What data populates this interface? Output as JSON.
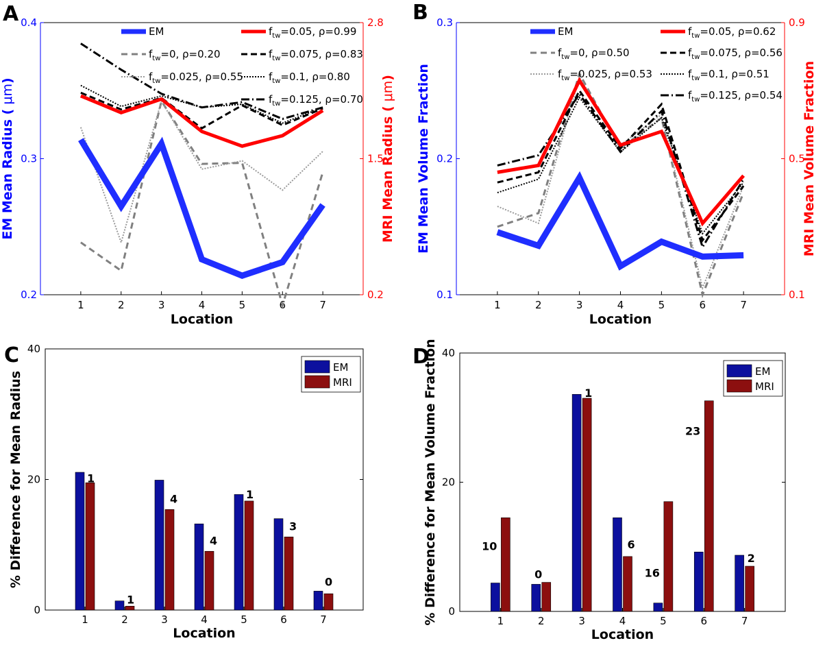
{
  "chart_data": [
    {
      "panel": "A",
      "type": "line",
      "xlabel": "Location",
      "ylabel_left": "EM Mean Radius (",
      "ylabel_left_unit": "μm",
      "ylabel_left_close": ")",
      "ylabel_right": "MRI Mean Radius (",
      "ylabel_right_unit": "μm",
      "ylabel_right_close": ")",
      "x": [
        1,
        2,
        3,
        4,
        5,
        6,
        7
      ],
      "xlim": [
        0,
        8
      ],
      "ylim_left": [
        0.2,
        0.4
      ],
      "yticks_left": [
        "0.2",
        "0.3",
        "0.4"
      ],
      "ylim_right": [
        0.2,
        2.8
      ],
      "yticks_right": [
        "0.2",
        "1.5",
        "2.8"
      ],
      "left_color": "#0000ff",
      "right_color": "#ff0000",
      "series": [
        {
          "name": "EM",
          "axis": "left",
          "color": "#1f2eff",
          "width": 9,
          "dash": "",
          "values": [
            0.314,
            0.265,
            0.311,
            0.226,
            0.214,
            0.224,
            0.266
          ]
        },
        {
          "name_pre": "f",
          "name_sub": "tw",
          "name_post": "=0, ρ=0.20",
          "axis": "right",
          "color": "#808080",
          "width": 3,
          "dash": "9,6",
          "values": [
            0.7,
            0.43,
            2.05,
            1.45,
            1.46,
            0.1,
            1.37
          ]
        },
        {
          "name_pre": "f",
          "name_sub": "tw",
          "name_post": "=0.025, ρ=0.55",
          "axis": "right",
          "color": "#9a9a9a",
          "width": 2,
          "dash": "2,2",
          "values": [
            1.8,
            0.7,
            2.05,
            1.4,
            1.48,
            1.2,
            1.57
          ]
        },
        {
          "name_pre": "f",
          "name_sub": "tw",
          "name_post": "=0.05, ρ=0.99",
          "axis": "right",
          "color": "#ff0000",
          "width": 5,
          "dash": "",
          "values": [
            2.1,
            1.94,
            2.07,
            1.76,
            1.62,
            1.72,
            1.96
          ]
        },
        {
          "name_pre": "f",
          "name_sub": "tw",
          "name_post": "=0.075, ρ=0.83",
          "axis": "right",
          "color": "#000000",
          "width": 3,
          "dash": "9,5",
          "values": [
            2.13,
            1.97,
            2.08,
            1.79,
            2.01,
            1.82,
            1.98
          ]
        },
        {
          "name_pre": "f",
          "name_sub": "tw",
          "name_post": "=0.1, ρ=0.80",
          "axis": "right",
          "color": "#000000",
          "width": 2,
          "dash": "2,2",
          "values": [
            2.2,
            2.0,
            2.1,
            1.99,
            2.02,
            1.84,
            1.99
          ]
        },
        {
          "name_pre": "f",
          "name_sub": "tw",
          "name_post": "=0.125, ρ=0.70",
          "axis": "right",
          "color": "#000000",
          "width": 3,
          "dash": "12,4,2,4",
          "values": [
            2.6,
            2.35,
            2.12,
            1.99,
            2.04,
            1.88,
            1.99
          ]
        }
      ]
    },
    {
      "panel": "B",
      "type": "line",
      "xlabel": "Location",
      "ylabel_left": "EM Mean Volume Fraction",
      "ylabel_right": "MRI Mean Volume Fraction",
      "x": [
        1,
        2,
        3,
        4,
        5,
        6,
        7
      ],
      "xlim": [
        0,
        8
      ],
      "ylim_left": [
        0.1,
        0.3
      ],
      "yticks_left": [
        "0.1",
        "0.2",
        "0.3"
      ],
      "ylim_right": [
        0.1,
        0.9
      ],
      "yticks_right": [
        "0.1",
        "0.5",
        "0.9"
      ],
      "left_color": "#0000ff",
      "right_color": "#ff0000",
      "series": [
        {
          "name": "EM",
          "axis": "left",
          "color": "#1f2eff",
          "width": 9,
          "dash": "",
          "values": [
            0.146,
            0.136,
            0.186,
            0.121,
            0.139,
            0.128,
            0.129
          ]
        },
        {
          "name_pre": "f",
          "name_sub": "tw",
          "name_post": "=0, ρ=0.50",
          "axis": "right",
          "color": "#808080",
          "width": 3,
          "dash": "9,6",
          "values": [
            0.3,
            0.34,
            0.75,
            0.53,
            0.62,
            0.1,
            0.4
          ]
        },
        {
          "name_pre": "f",
          "name_sub": "tw",
          "name_post": "=0.025, ρ=0.53",
          "axis": "right",
          "color": "#9a9a9a",
          "width": 2,
          "dash": "2,2",
          "values": [
            0.36,
            0.31,
            0.74,
            0.54,
            0.63,
            0.12,
            0.42
          ]
        },
        {
          "name_pre": "f",
          "name_sub": "tw",
          "name_post": "=0.05, ρ=0.62",
          "axis": "right",
          "color": "#ff0000",
          "width": 5,
          "dash": "",
          "values": [
            0.46,
            0.48,
            0.73,
            0.54,
            0.58,
            0.31,
            0.45
          ]
        },
        {
          "name_pre": "f",
          "name_sub": "tw",
          "name_post": "=0.075, ρ=0.56",
          "axis": "right",
          "color": "#000000",
          "width": 3,
          "dash": "9,5",
          "values": [
            0.43,
            0.46,
            0.7,
            0.53,
            0.66,
            0.26,
            0.42
          ]
        },
        {
          "name_pre": "f",
          "name_sub": "tw",
          "name_post": "=0.1, ρ=0.51",
          "axis": "right",
          "color": "#000000",
          "width": 2,
          "dash": "2,2",
          "values": [
            0.4,
            0.44,
            0.68,
            0.52,
            0.62,
            0.28,
            0.43
          ]
        },
        {
          "name_pre": "f",
          "name_sub": "tw",
          "name_post": "=0.125, ρ=0.54",
          "axis": "right",
          "color": "#000000",
          "width": 3,
          "dash": "12,4,2,4",
          "values": [
            0.48,
            0.51,
            0.69,
            0.52,
            0.64,
            0.24,
            0.44
          ]
        }
      ]
    },
    {
      "panel": "C",
      "type": "bar",
      "xlabel": "Location",
      "ylabel": "% Difference for Mean Radius",
      "categories": [
        "1",
        "2",
        "3",
        "4",
        "5",
        "6",
        "7"
      ],
      "ylim": [
        0,
        40
      ],
      "yticks": [
        "0",
        "20",
        "40"
      ],
      "series": [
        {
          "name": "EM",
          "color": "#0c109e",
          "values": [
            21.1,
            1.4,
            19.9,
            13.2,
            17.7,
            14.0,
            2.9
          ]
        },
        {
          "name": "MRI",
          "color": "#8c0f0f",
          "values": [
            19.5,
            0.6,
            15.4,
            9.0,
            16.7,
            11.2,
            2.5
          ]
        }
      ],
      "bar_labels": [
        "1",
        "1",
        "4",
        "4",
        "1",
        "3",
        "0"
      ]
    },
    {
      "panel": "D",
      "type": "bar",
      "xlabel": "Location",
      "ylabel": "% Difference for Mean Volume Fraction",
      "categories": [
        "1",
        "2",
        "3",
        "4",
        "5",
        "6",
        "7"
      ],
      "ylim": [
        0,
        40
      ],
      "yticks": [
        "0",
        "20",
        "40"
      ],
      "series": [
        {
          "name": "EM",
          "color": "#0c109e",
          "values": [
            4.4,
            4.2,
            33.6,
            14.5,
            1.3,
            9.2,
            8.7
          ]
        },
        {
          "name": "MRI",
          "color": "#8c0f0f",
          "values": [
            14.5,
            4.5,
            33.0,
            8.5,
            17.0,
            32.6,
            7.0
          ]
        }
      ],
      "bar_labels": [
        "10",
        "0",
        "1",
        "6",
        "16",
        "23",
        "2"
      ]
    }
  ]
}
